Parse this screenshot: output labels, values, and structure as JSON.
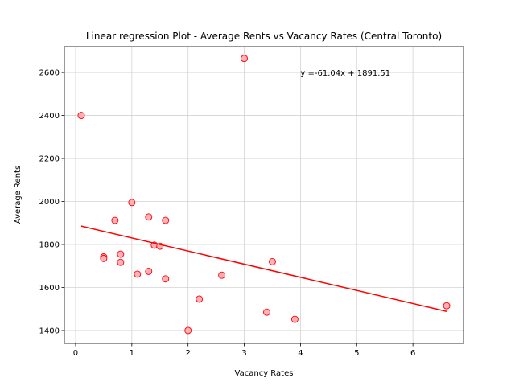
{
  "chart_data": {
    "type": "scatter",
    "title": "Linear regression Plot - Average Rents vs Vacancy Rates (Central Toronto)",
    "xlabel": "Vacancy Rates",
    "ylabel": "Average Rents",
    "xlim": [
      -0.2,
      6.9
    ],
    "ylim": [
      1340,
      2720
    ],
    "xticks": [
      0,
      1,
      2,
      3,
      4,
      5,
      6
    ],
    "yticks": [
      1400,
      1600,
      1800,
      2000,
      2200,
      2400,
      2600
    ],
    "grid": true,
    "colors": {
      "marker_face": "#ffb0b8",
      "marker_edge": "#ff0000",
      "regression_line": "#ff0000",
      "grid": "#d3d3d3"
    },
    "points": [
      {
        "x": 0.1,
        "y": 2400
      },
      {
        "x": 3.0,
        "y": 2665
      },
      {
        "x": 1.0,
        "y": 1995
      },
      {
        "x": 0.7,
        "y": 1912
      },
      {
        "x": 1.3,
        "y": 1928
      },
      {
        "x": 1.6,
        "y": 1912
      },
      {
        "x": 1.4,
        "y": 1797
      },
      {
        "x": 1.5,
        "y": 1792
      },
      {
        "x": 0.8,
        "y": 1755
      },
      {
        "x": 0.5,
        "y": 1742
      },
      {
        "x": 0.5,
        "y": 1735
      },
      {
        "x": 0.8,
        "y": 1717
      },
      {
        "x": 3.5,
        "y": 1720
      },
      {
        "x": 1.1,
        "y": 1662
      },
      {
        "x": 1.3,
        "y": 1675
      },
      {
        "x": 1.6,
        "y": 1640
      },
      {
        "x": 2.6,
        "y": 1657
      },
      {
        "x": 2.2,
        "y": 1546
      },
      {
        "x": 3.4,
        "y": 1485
      },
      {
        "x": 3.9,
        "y": 1452
      },
      {
        "x": 2.0,
        "y": 1400
      },
      {
        "x": 6.6,
        "y": 1515
      }
    ],
    "regression": {
      "slope": -61.04,
      "intercept": 1891.51,
      "x_range": [
        0.1,
        6.6
      ]
    },
    "annotation": {
      "text": "y =-61.04x + 1891.51",
      "x": 4.0,
      "y": 2600
    }
  }
}
